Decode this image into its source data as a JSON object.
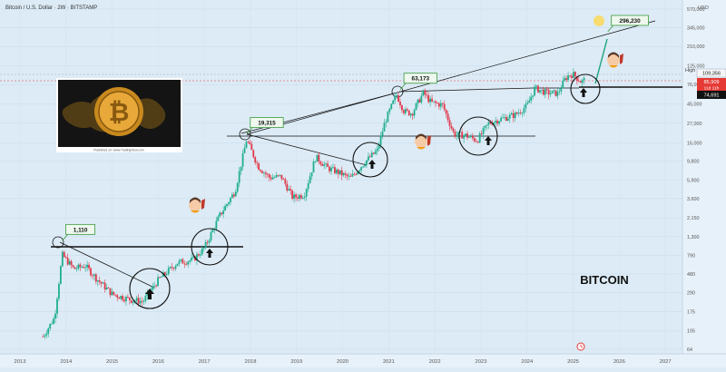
{
  "header": {
    "title": "Bitcoin / U.S. Dollar · 2W · BITSTAMP",
    "currency": "USD"
  },
  "chart_data": {
    "type": "candlestick",
    "title": "BITCOIN",
    "x_ticks": [
      "2013",
      "2014",
      "2015",
      "2016",
      "2017",
      "2018",
      "2019",
      "2020",
      "2021",
      "2022",
      "2023",
      "2024",
      "2025",
      "2026",
      "2027"
    ],
    "y_scale": "log",
    "y_ticks": [
      "570,000",
      "345,000",
      "210,000",
      "125,000",
      "76,000",
      "45,000",
      "27,000",
      "16,000",
      "9,800",
      "5,900",
      "3,600",
      "2,150",
      "1,300",
      "790",
      "480",
      "290",
      "175",
      "105",
      "64"
    ],
    "series": [
      {
        "x": [
          "2013-07",
          "2013-10",
          "2013-12",
          "2014-03",
          "2014-06",
          "2014-09",
          "2015-01",
          "2015-06",
          "2015-09",
          "2016-01",
          "2016-06",
          "2016-10",
          "2017-01",
          "2017-05",
          "2017-09",
          "2017-12",
          "2018-03",
          "2018-06",
          "2018-09",
          "2018-12",
          "2019-03",
          "2019-06",
          "2019-09",
          "2019-12",
          "2020-03",
          "2020-07",
          "2020-10",
          "2020-12",
          "2021-03",
          "2021-05",
          "2021-07",
          "2021-10",
          "2021-12",
          "2022-03",
          "2022-06",
          "2022-09",
          "2022-12",
          "2023-03",
          "2023-06",
          "2023-10",
          "2024-01",
          "2024-03",
          "2024-06",
          "2024-09",
          "2024-11",
          "2024-12",
          "2025-01",
          "2025-03",
          "2025-04"
        ],
        "y": [
          90,
          150,
          800,
          550,
          600,
          420,
          280,
          240,
          230,
          410,
          650,
          700,
          960,
          2300,
          4400,
          17500,
          8500,
          6300,
          6500,
          3700,
          4000,
          11000,
          8200,
          7200,
          6200,
          9800,
          13000,
          28000,
          58000,
          37000,
          35000,
          61000,
          47000,
          44000,
          20000,
          19500,
          17000,
          27000,
          30000,
          34000,
          43000,
          69000,
          61000,
          60000,
          90000,
          98000,
          100000,
          82000,
          86000
        ]
      }
    ],
    "annotations": [
      {
        "label": "1,110",
        "x": "2013-12",
        "y": 1110
      },
      {
        "label": "19,315",
        "x": "2017-12",
        "y": 19315
      },
      {
        "label": "63,173",
        "x": "2021-04",
        "y": 63173
      },
      {
        "label": "296,230",
        "x": "2025-10",
        "y": 296230
      }
    ],
    "price_labels": {
      "high_label": "High",
      "high_value": "109,356",
      "current_price": "85,909",
      "current_countdown": "11d 11h",
      "support": "74,691"
    },
    "grid": true,
    "legend": "none"
  },
  "inset": {
    "caption": "Published on: www.TradingView.com"
  },
  "colors": {
    "up": "#1fae8e",
    "down": "#e0394a",
    "current": "#e53935",
    "support_bg": "#111111",
    "annotation": "#3a9a3a"
  },
  "icons": [
    "bitcoin-icon",
    "rocket-icon",
    "arrow-up-icon",
    "clock-icon"
  ]
}
